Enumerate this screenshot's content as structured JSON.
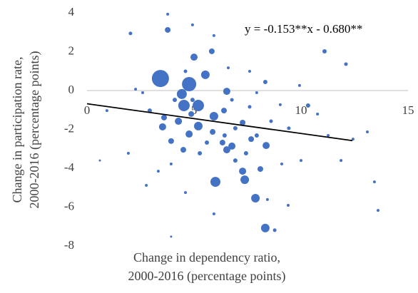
{
  "chart_data": {
    "type": "scatter",
    "x_label": [
      "Change in dependency ratio,",
      "2000-2016  (percentage points)"
    ],
    "y_label": [
      "Change in participation rate,",
      "2000-2016  (percentage points)"
    ],
    "xlim": [
      0,
      15
    ],
    "xticks": [
      0,
      5,
      10,
      15
    ],
    "ylim": [
      -8,
      4
    ],
    "yticks": [
      -8,
      -6,
      -4,
      -2,
      0,
      2,
      4
    ],
    "trendline": {
      "label": "y = -0.153**x - 0.680**",
      "slope": -0.153,
      "intercept": -0.68,
      "x": [
        0,
        12.4
      ],
      "color": "#000000"
    },
    "series": [
      {
        "color": "#4472c4",
        "x": [
          3.43,
          4.77,
          4.43,
          4.53,
          5.2,
          5.53,
          5.0,
          5.83,
          3.77,
          5.93,
          5.2,
          3.53,
          6.0,
          7.37,
          7.27,
          7.87,
          8.33,
          6.53,
          4.77,
          4.27,
          6.33,
          6.77,
          8.1,
          8.37,
          6.53,
          3.6,
          4.5,
          3.93,
          6.4,
          7.27,
          5.87,
          7.67,
          4.87,
          2.03,
          11.1,
          12.1,
          8.33,
          10.33,
          9.03,
          10.0,
          11.87,
          9.4,
          8.43,
          6.43,
          6.93,
          5.6,
          7.43,
          7.93,
          8.6,
          9.43,
          4.93,
          4.1,
          2.93,
          2.6,
          2.27,
          4.6,
          6.77,
          7.6,
          7.93,
          9.93,
          10.77,
          11.27,
          9.1,
          3.93,
          2.77,
          4.6,
          5.93,
          8.77,
          6.6,
          5.93,
          12.43,
          13.1,
          13.43,
          13.6,
          1.93,
          0.93,
          0.6,
          3.77,
          4.93,
          7.6,
          3.33,
          5.27,
          6.93,
          3.93
        ],
        "values": [
          0.62,
          0.33,
          -0.18,
          -0.77,
          -0.77,
          0.81,
          1.72,
          2.02,
          3.12,
          -1.32,
          -1.83,
          -1.87,
          -4.7,
          -4.59,
          -4.15,
          -5.54,
          -7.08,
          -0.04,
          -2.24,
          -1.58,
          -2.68,
          -2.86,
          -4.04,
          -2.83,
          -3.05,
          -1.39,
          -3.05,
          -2.6,
          -1.03,
          -1.65,
          -2.13,
          -2.5,
          -1.21,
          2.94,
          2.02,
          1.36,
          0.44,
          -0.77,
          -0.73,
          -3.6,
          -3.6,
          -5.91,
          -5.61,
          -2.31,
          -3.6,
          -2.68,
          -3.23,
          -2.31,
          -1.58,
          -1.94,
          -0.48,
          -0.48,
          -1.03,
          -0.11,
          0.07,
          0.99,
          -0.48,
          -0.84,
          -0.11,
          0.26,
          -1.21,
          -2.31,
          -3.78,
          -3.78,
          -4.88,
          -5.25,
          -6.35,
          -7.19,
          1.17,
          2.83,
          -2.5,
          -2.13,
          -4.7,
          -6.17,
          -3.23,
          -1.03,
          -3.6,
          3.93,
          3.38,
          0.99,
          -4.15,
          -3.23,
          -1.94,
          -7.52
        ],
        "sizes": [
          12,
          10,
          7,
          8,
          8,
          6,
          5,
          4,
          4,
          6,
          6,
          5,
          7,
          6,
          5,
          6,
          6,
          5,
          5,
          5,
          4,
          5,
          4,
          5,
          5,
          4,
          4,
          4,
          4,
          4,
          4,
          4,
          4,
          2.5,
          3,
          2.5,
          3,
          3,
          2,
          2,
          2,
          2,
          2,
          3,
          3,
          3,
          3,
          3,
          2.5,
          2.5,
          3,
          3,
          3,
          2,
          2,
          2.5,
          2.5,
          2.5,
          2,
          2,
          2,
          2,
          2,
          2,
          2,
          2,
          2,
          2.5,
          2,
          2,
          2,
          2,
          2,
          2,
          2,
          2,
          1.5,
          2,
          2,
          2,
          2,
          3,
          3,
          1.5
        ]
      }
    ]
  }
}
